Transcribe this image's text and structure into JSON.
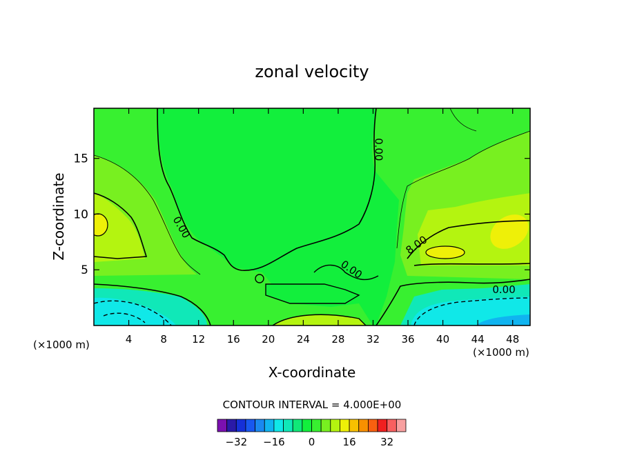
{
  "chart_data": {
    "type": "contour",
    "title": "zonal velocity",
    "xlabel": "X-coordinate",
    "ylabel": "Z-coordinate",
    "x_unit_left": "(×1000 m)",
    "x_unit_right": "(×1000 m)",
    "xlim": [
      0,
      50
    ],
    "ylim": [
      0,
      19.5
    ],
    "x_ticks": [
      4,
      8,
      12,
      16,
      20,
      24,
      28,
      32,
      36,
      40,
      44,
      48
    ],
    "y_ticks": [
      5,
      10,
      15
    ],
    "contour_interval_text": "CONTOUR INTERVAL = 4.000E+00",
    "contour_labels": [
      {
        "text": "0.00",
        "x": 32.6,
        "z": 15.8,
        "angle": 90
      },
      {
        "text": "0.00",
        "x": 10.0,
        "z": 8.8,
        "angle": 60
      },
      {
        "text": "8.00",
        "x": 37.0,
        "z": 7.2,
        "angle": -35
      },
      {
        "text": "0.00",
        "x": 29.5,
        "z": 5.0,
        "angle": 35
      },
      {
        "text": "0.00",
        "x": 47.0,
        "z": 3.2,
        "angle": 0
      }
    ],
    "colorbar": {
      "levels": [
        -36,
        -32,
        -28,
        -24,
        -20,
        -16,
        -12,
        -8,
        -4,
        0,
        4,
        8,
        12,
        16,
        20,
        24,
        28,
        32,
        36
      ],
      "colors": [
        "#7b10b0",
        "#2a1aa8",
        "#1530d8",
        "#1858f0",
        "#1a88f0",
        "#10b4f0",
        "#10e8e8",
        "#10e8b8",
        "#10e878",
        "#12ef3c",
        "#38f030",
        "#78f020",
        "#b4f410",
        "#eef008",
        "#f8c000",
        "#f89000",
        "#f86010",
        "#f02020",
        "#f86060",
        "#f8a0a0"
      ],
      "tick_values": [
        -32,
        -16,
        0,
        16,
        32
      ],
      "tick_labels": [
        "−32",
        "−16",
        "0",
        "16",
        "32"
      ]
    }
  }
}
